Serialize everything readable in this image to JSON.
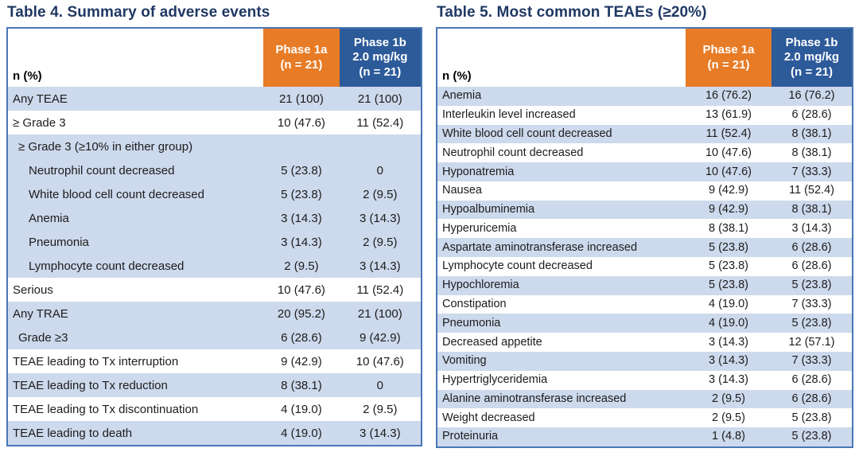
{
  "colors": {
    "orange": "#E87B25",
    "header-blue": "#2D5A99",
    "row-blue": "#CDD9EC",
    "border-blue": "#4977B5",
    "title-navy": "#1F3864"
  },
  "tables": [
    {
      "title": "Table 4. Summary of adverse events",
      "row_label_header": "n (%)",
      "columns": [
        {
          "label": "Phase 1a\n(n = 21)",
          "color": "orange"
        },
        {
          "label": "Phase 1b\n2.0 mg/kg\n(n = 21)",
          "color": "blue"
        }
      ],
      "rows": [
        {
          "label": "Any TEAE",
          "values": [
            "21 (100)",
            "21 (100)"
          ],
          "shade": "blue",
          "indent": 0
        },
        {
          "label": "≥ Grade 3",
          "values": [
            "10 (47.6)",
            "11 (52.4)"
          ],
          "shade": "white",
          "indent": 0
        },
        {
          "label": "≥ Grade 3 (≥10% in either group)",
          "values": [
            "",
            ""
          ],
          "shade": "blue",
          "indent": 1
        },
        {
          "label": "Neutrophil count decreased",
          "values": [
            "5 (23.8)",
            "0"
          ],
          "shade": "blue",
          "indent": 2
        },
        {
          "label": "White blood cell count decreased",
          "values": [
            "5 (23.8)",
            "2 (9.5)"
          ],
          "shade": "blue",
          "indent": 2
        },
        {
          "label": "Anemia",
          "values": [
            "3 (14.3)",
            "3 (14.3)"
          ],
          "shade": "blue",
          "indent": 2
        },
        {
          "label": "Pneumonia",
          "values": [
            "3 (14.3)",
            "2 (9.5)"
          ],
          "shade": "blue",
          "indent": 2
        },
        {
          "label": "Lymphocyte count decreased",
          "values": [
            "2 (9.5)",
            "3 (14.3)"
          ],
          "shade": "blue",
          "indent": 2
        },
        {
          "label": "Serious",
          "values": [
            "10 (47.6)",
            "11 (52.4)"
          ],
          "shade": "white",
          "indent": 0
        },
        {
          "label": "Any TRAE",
          "values": [
            "20 (95.2)",
            "21 (100)"
          ],
          "shade": "blue",
          "indent": 0
        },
        {
          "label": "Grade ≥3",
          "values": [
            "6 (28.6)",
            "9 (42.9)"
          ],
          "shade": "blue",
          "indent": 1
        },
        {
          "label": "TEAE leading to Tx interruption",
          "values": [
            "9 (42.9)",
            "10 (47.6)"
          ],
          "shade": "white",
          "indent": 0
        },
        {
          "label": "TEAE leading to Tx reduction",
          "values": [
            "8 (38.1)",
            "0"
          ],
          "shade": "blue",
          "indent": 0
        },
        {
          "label": "TEAE leading to Tx discontinuation",
          "values": [
            "4 (19.0)",
            "2 (9.5)"
          ],
          "shade": "white",
          "indent": 0
        },
        {
          "label": "TEAE leading to death",
          "values": [
            "4 (19.0)",
            "3 (14.3)"
          ],
          "shade": "blue",
          "indent": 0
        }
      ]
    },
    {
      "title": "Table 5. Most common TEAEs (≥20%)",
      "row_label_header": "n (%)",
      "columns": [
        {
          "label": "Phase 1a\n(n = 21)",
          "color": "orange"
        },
        {
          "label": "Phase 1b\n2.0 mg/kg\n(n = 21)",
          "color": "blue"
        }
      ],
      "rows": [
        {
          "label": "Anemia",
          "values": [
            "16 (76.2)",
            "16 (76.2)"
          ],
          "shade": "blue",
          "indent": 0
        },
        {
          "label": "Interleukin level increased",
          "values": [
            "13 (61.9)",
            "6 (28.6)"
          ],
          "shade": "white",
          "indent": 0
        },
        {
          "label": "White blood cell count decreased",
          "values": [
            "11 (52.4)",
            "8 (38.1)"
          ],
          "shade": "blue",
          "indent": 0
        },
        {
          "label": "Neutrophil count decreased",
          "values": [
            "10 (47.6)",
            "8 (38.1)"
          ],
          "shade": "white",
          "indent": 0
        },
        {
          "label": "Hyponatremia",
          "values": [
            "10 (47.6)",
            "7 (33.3)"
          ],
          "shade": "blue",
          "indent": 0
        },
        {
          "label": "Nausea",
          "values": [
            "9 (42.9)",
            "11 (52.4)"
          ],
          "shade": "white",
          "indent": 0
        },
        {
          "label": "Hypoalbuminemia",
          "values": [
            "9 (42.9)",
            "8 (38.1)"
          ],
          "shade": "blue",
          "indent": 0
        },
        {
          "label": "Hyperuricemia",
          "values": [
            "8 (38.1)",
            "3 (14.3)"
          ],
          "shade": "white",
          "indent": 0
        },
        {
          "label": "Aspartate aminotransferase increased",
          "values": [
            "5 (23.8)",
            "6 (28.6)"
          ],
          "shade": "blue",
          "indent": 0
        },
        {
          "label": "Lymphocyte count decreased",
          "values": [
            "5 (23.8)",
            "6 (28.6)"
          ],
          "shade": "white",
          "indent": 0
        },
        {
          "label": "Hypochloremia",
          "values": [
            "5 (23.8)",
            "5 (23.8)"
          ],
          "shade": "blue",
          "indent": 0
        },
        {
          "label": "Constipation",
          "values": [
            "4 (19.0)",
            "7 (33.3)"
          ],
          "shade": "white",
          "indent": 0
        },
        {
          "label": "Pneumonia",
          "values": [
            "4 (19.0)",
            "5 (23.8)"
          ],
          "shade": "blue",
          "indent": 0
        },
        {
          "label": "Decreased appetite",
          "values": [
            "3 (14.3)",
            "12 (57.1)"
          ],
          "shade": "white",
          "indent": 0
        },
        {
          "label": "Vomiting",
          "values": [
            "3 (14.3)",
            "7 (33.3)"
          ],
          "shade": "blue",
          "indent": 0
        },
        {
          "label": "Hypertriglyceridemia",
          "values": [
            "3 (14.3)",
            "6 (28.6)"
          ],
          "shade": "white",
          "indent": 0
        },
        {
          "label": "Alanine aminotransferase increased",
          "values": [
            "2 (9.5)",
            "6 (28.6)"
          ],
          "shade": "blue",
          "indent": 0
        },
        {
          "label": "Weight decreased",
          "values": [
            "2 (9.5)",
            "5 (23.8)"
          ],
          "shade": "white",
          "indent": 0
        },
        {
          "label": "Proteinuria",
          "values": [
            "1 (4.8)",
            "5 (23.8)"
          ],
          "shade": "blue",
          "indent": 0
        }
      ]
    }
  ]
}
